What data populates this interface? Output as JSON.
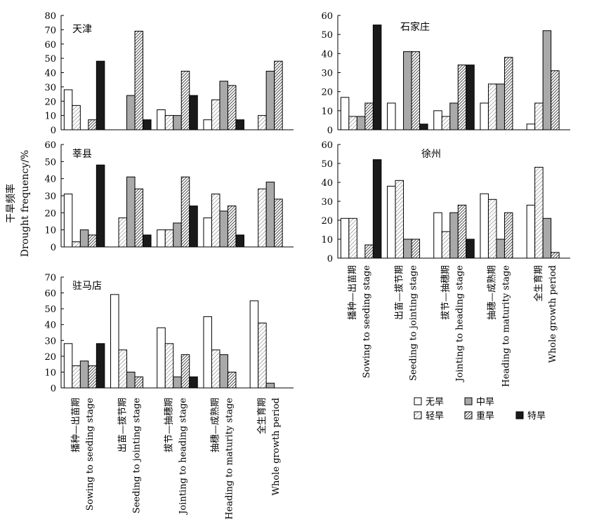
{
  "figure": {
    "y_label_cn": "干旱频率",
    "y_label_en": "Drought frequency/%",
    "categories_cn": [
      "播种—出苗期",
      "出苗—拔节期",
      "拔节—抽穗期",
      "抽穗—成熟期",
      "全生育期"
    ],
    "categories_en": [
      "Sowing to seeding stage",
      "Seeding to jointing stage",
      "Jointing to heading stage",
      "Heading to maturity stage",
      "Whole growth period"
    ],
    "legend": [
      {
        "label": "无旱",
        "pattern": "white"
      },
      {
        "label": "轻旱",
        "pattern": "light-hatch"
      },
      {
        "label": "中旱",
        "pattern": "gray"
      },
      {
        "label": "重旱",
        "pattern": "dense-hatch"
      },
      {
        "label": "特旱",
        "pattern": "black"
      }
    ]
  },
  "chart_data": [
    {
      "type": "bar",
      "title": "天津",
      "categories": [
        "播种—出苗期",
        "出苗—拔节期",
        "拔节—抽穗期",
        "抽穗—成熟期",
        "全生育期"
      ],
      "ylim": [
        0,
        80
      ],
      "yticks": [
        0,
        10,
        20,
        30,
        40,
        50,
        60,
        70,
        80
      ],
      "series": [
        {
          "name": "无旱",
          "values": [
            28,
            0,
            14,
            7,
            0
          ]
        },
        {
          "name": "轻旱",
          "values": [
            17,
            0,
            10,
            21,
            10
          ]
        },
        {
          "name": "中旱",
          "values": [
            0,
            24,
            10,
            34,
            41
          ]
        },
        {
          "name": "重旱",
          "values": [
            7,
            69,
            41,
            31,
            48
          ]
        },
        {
          "name": "特旱",
          "values": [
            48,
            7,
            24,
            7,
            0
          ]
        }
      ]
    },
    {
      "type": "bar",
      "title": "石家庄",
      "categories": [
        "播种—出苗期",
        "出苗—拔节期",
        "拔节—抽穗期",
        "抽穗—成熟期",
        "全生育期"
      ],
      "ylim": [
        0,
        60
      ],
      "yticks": [
        0,
        10,
        20,
        30,
        40,
        50,
        60
      ],
      "series": [
        {
          "name": "无旱",
          "values": [
            17,
            14,
            10,
            14,
            3
          ]
        },
        {
          "name": "轻旱",
          "values": [
            7,
            0,
            7,
            24,
            14
          ]
        },
        {
          "name": "中旱",
          "values": [
            7,
            41,
            14,
            24,
            52
          ]
        },
        {
          "name": "重旱",
          "values": [
            14,
            41,
            34,
            38,
            31
          ]
        },
        {
          "name": "特旱",
          "values": [
            55,
            3,
            34,
            0,
            0
          ]
        }
      ]
    },
    {
      "type": "bar",
      "title": "莘县",
      "categories": [
        "播种—出苗期",
        "出苗—拔节期",
        "拔节—抽穗期",
        "抽穗—成熟期",
        "全生育期"
      ],
      "ylim": [
        0,
        60
      ],
      "yticks": [
        0,
        10,
        20,
        30,
        40,
        50,
        60
      ],
      "series": [
        {
          "name": "无旱",
          "values": [
            31,
            0,
            10,
            17,
            0
          ]
        },
        {
          "name": "轻旱",
          "values": [
            3,
            17,
            10,
            31,
            34
          ]
        },
        {
          "name": "中旱",
          "values": [
            10,
            41,
            14,
            21,
            38
          ]
        },
        {
          "name": "重旱",
          "values": [
            7,
            34,
            41,
            24,
            28
          ]
        },
        {
          "name": "特旱",
          "values": [
            48,
            7,
            24,
            7,
            0
          ]
        }
      ]
    },
    {
      "type": "bar",
      "title": "徐州",
      "categories": [
        "播种—出苗期",
        "出苗—拔节期",
        "拔节—抽穗期",
        "抽穗—成熟期",
        "全生育期"
      ],
      "ylim": [
        0,
        60
      ],
      "yticks": [
        0,
        10,
        20,
        30,
        40,
        50,
        60
      ],
      "series": [
        {
          "name": "无旱",
          "values": [
            21,
            38,
            24,
            34,
            28
          ]
        },
        {
          "name": "轻旱",
          "values": [
            21,
            41,
            14,
            31,
            48
          ]
        },
        {
          "name": "中旱",
          "values": [
            0,
            10,
            24,
            10,
            21
          ]
        },
        {
          "name": "重旱",
          "values": [
            7,
            10,
            28,
            24,
            3
          ]
        },
        {
          "name": "特旱",
          "values": [
            52,
            0,
            10,
            0,
            0
          ]
        }
      ]
    },
    {
      "type": "bar",
      "title": "驻马店",
      "categories": [
        "播种—出苗期",
        "出苗—拔节期",
        "拔节—抽穗期",
        "抽穗—成熟期",
        "全生育期"
      ],
      "ylim": [
        0,
        70
      ],
      "yticks": [
        0,
        10,
        20,
        30,
        40,
        50,
        60,
        70
      ],
      "series": [
        {
          "name": "无旱",
          "values": [
            28,
            59,
            38,
            45,
            55
          ]
        },
        {
          "name": "轻旱",
          "values": [
            14,
            24,
            28,
            24,
            41
          ]
        },
        {
          "name": "中旱",
          "values": [
            17,
            10,
            7,
            21,
            3
          ]
        },
        {
          "name": "重旱",
          "values": [
            14,
            7,
            21,
            10,
            0
          ]
        },
        {
          "name": "特旱",
          "values": [
            28,
            0,
            7,
            0,
            0
          ]
        }
      ]
    }
  ]
}
